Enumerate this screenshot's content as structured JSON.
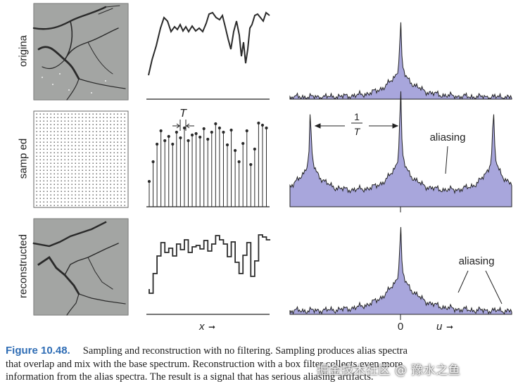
{
  "row_labels": [
    "origina",
    "samp ed",
    "reconstructed"
  ],
  "spatial_panel": {
    "period_label": "T",
    "x_axis_label": "x",
    "x_arrow": "➞"
  },
  "spectrum_panel": {
    "period_fraction": {
      "numerator": "1",
      "denominator": "T"
    },
    "aliasing_label_sampled": "aliasing",
    "aliasing_label_reconstructed": "aliasing",
    "zero_tick": "0",
    "u_axis_label": "u",
    "u_arrow": "➞"
  },
  "colors": {
    "spectrum_fill": "#a8a6dc",
    "curve_stroke": "#222222",
    "caption_number": "#2f6db5"
  },
  "caption": {
    "number": "Figure 10.48.",
    "lines": [
      "Sampling and reconstruction with no filtering. Sampling produces alias spectra",
      "that overlap and mix with the base spectrum. Reconstruction with a box filter collects even more",
      "information from the alias spectra. The result is a signal that has serious aliasing artifacts."
    ]
  },
  "watermark": "掘金技术社区 @ 豫水之鱼"
}
